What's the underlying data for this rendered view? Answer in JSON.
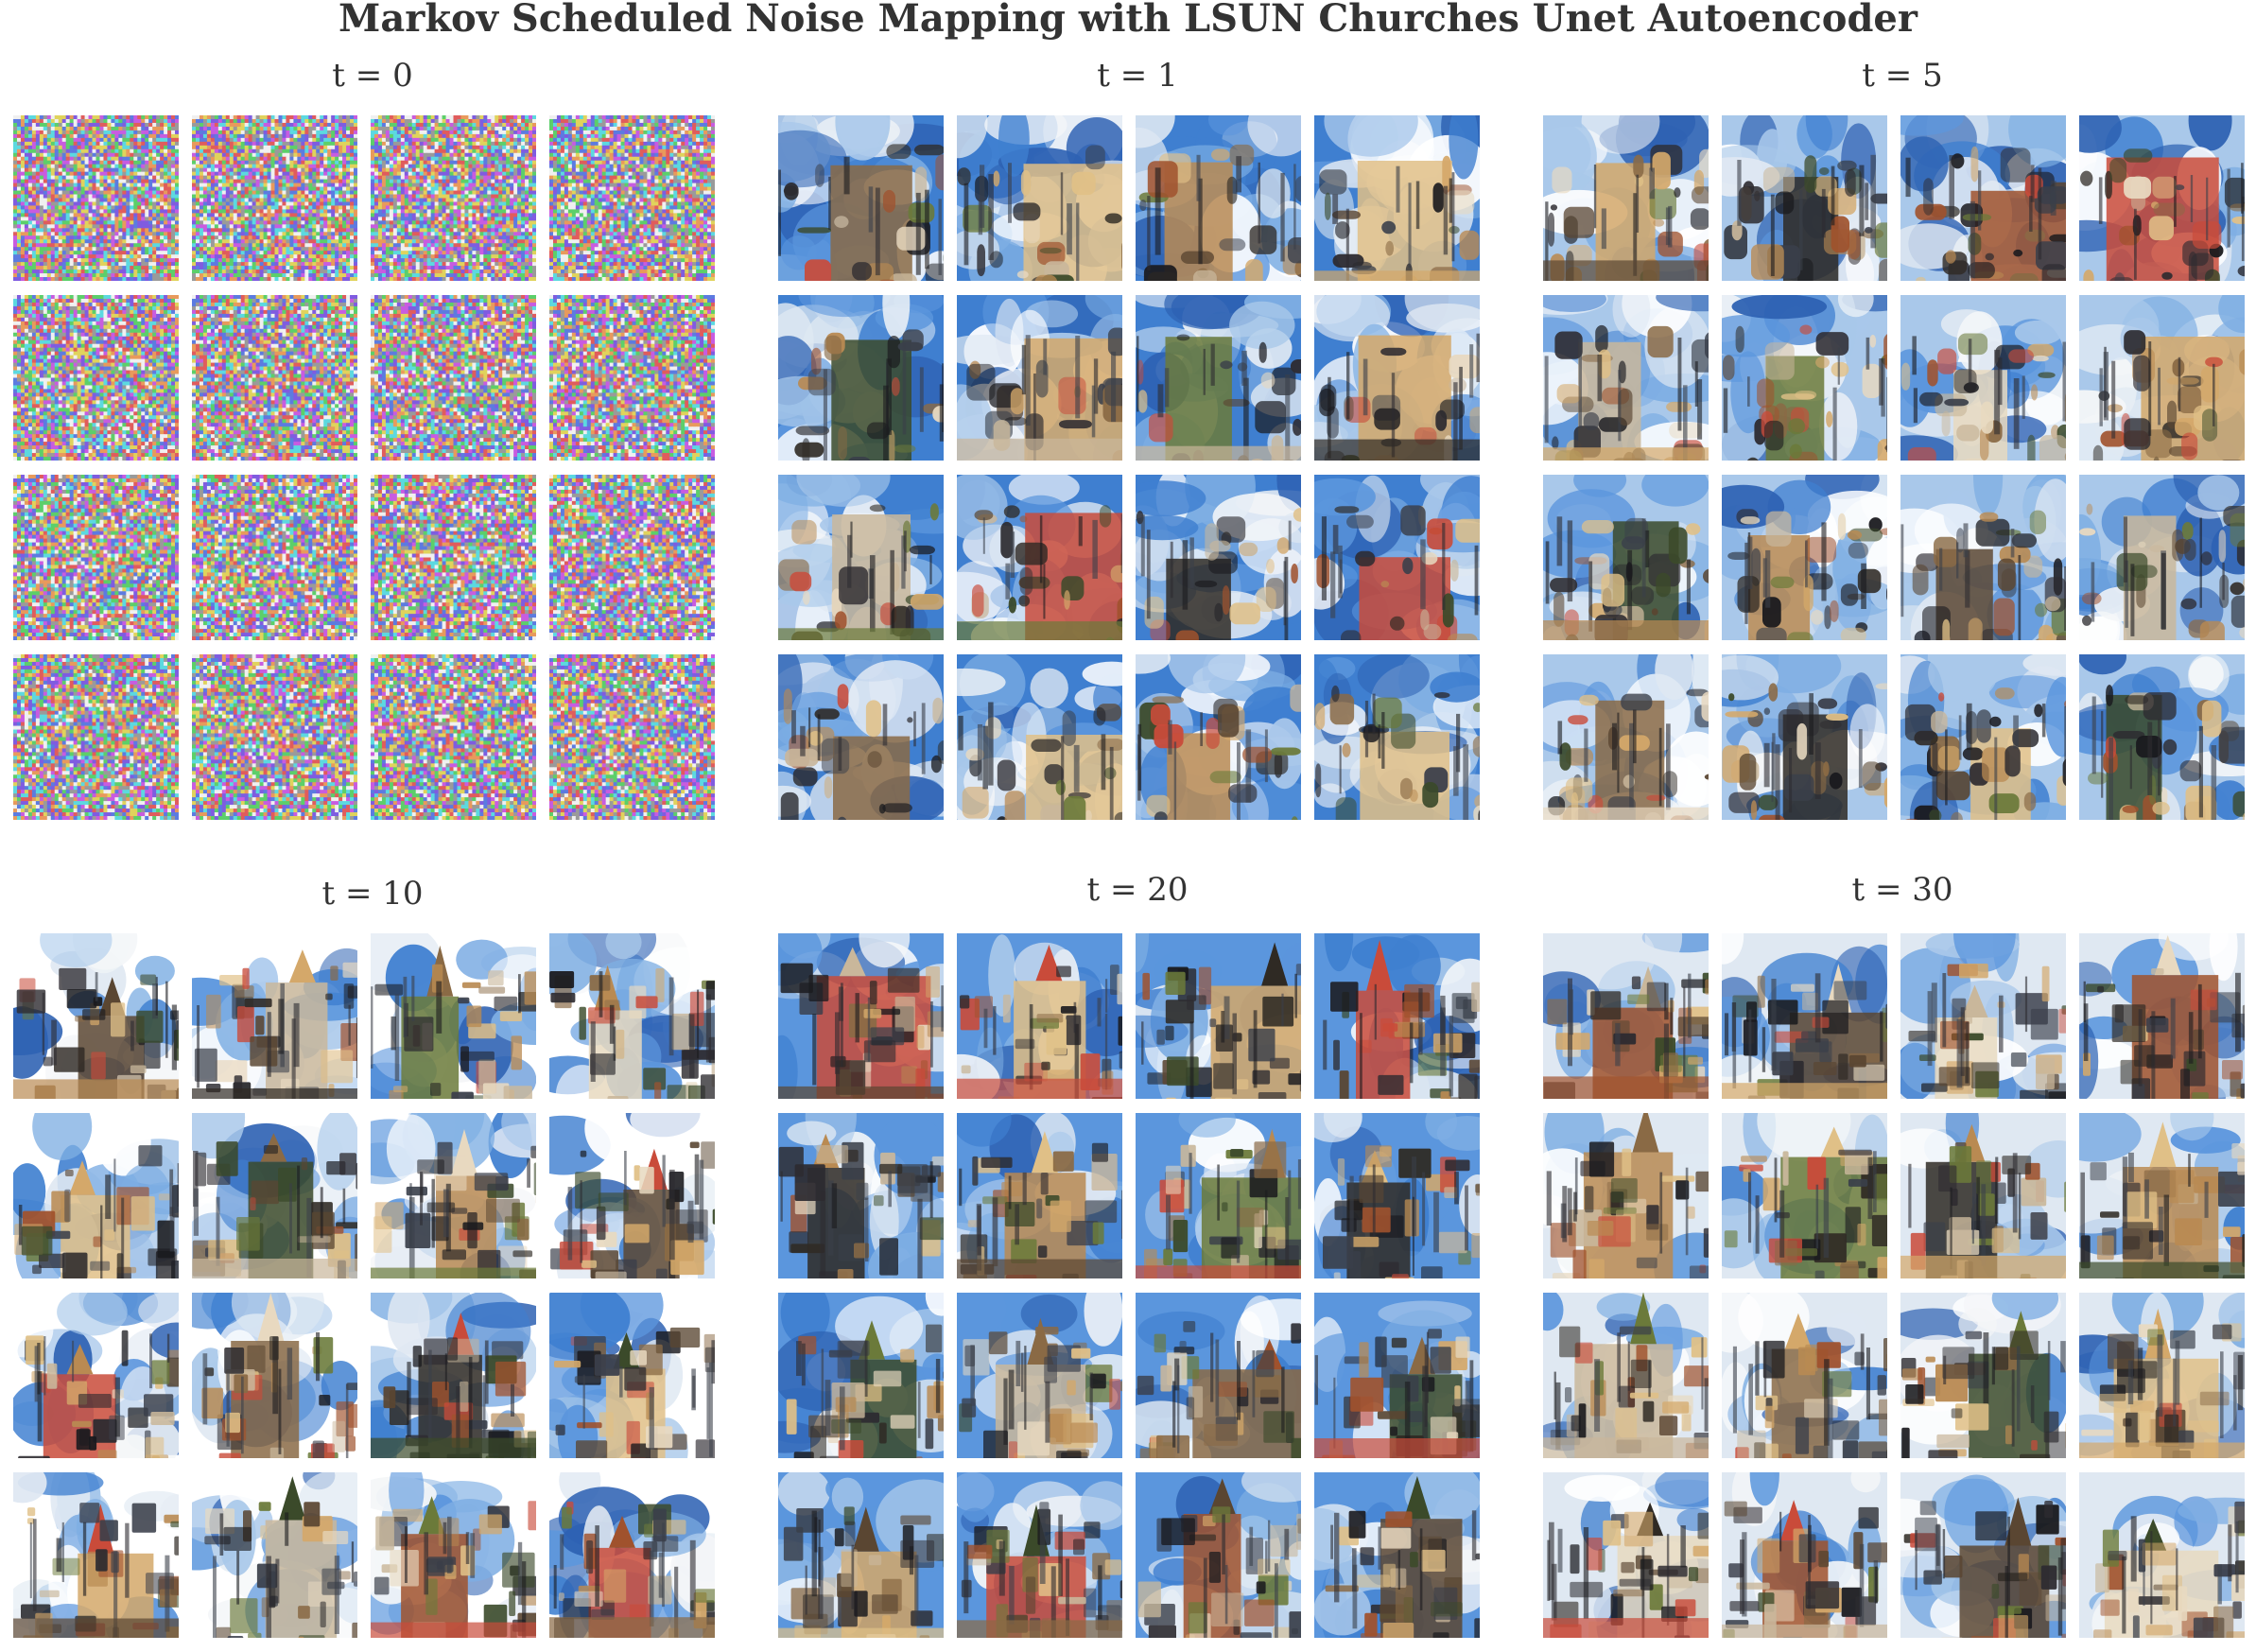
{
  "title": "Markov Scheduled Noise Mapping with LSUN Churches Unet Autoencoder",
  "panels": [
    {
      "label": "t = 0",
      "step": 0
    },
    {
      "label": "t = 1",
      "step": 1
    },
    {
      "label": "t = 5",
      "step": 5
    },
    {
      "label": "t = 10",
      "step": 10
    },
    {
      "label": "t = 20",
      "step": 20
    },
    {
      "label": "t = 30",
      "step": 30
    }
  ],
  "grid": {
    "rows": 4,
    "cols": 4
  }
}
